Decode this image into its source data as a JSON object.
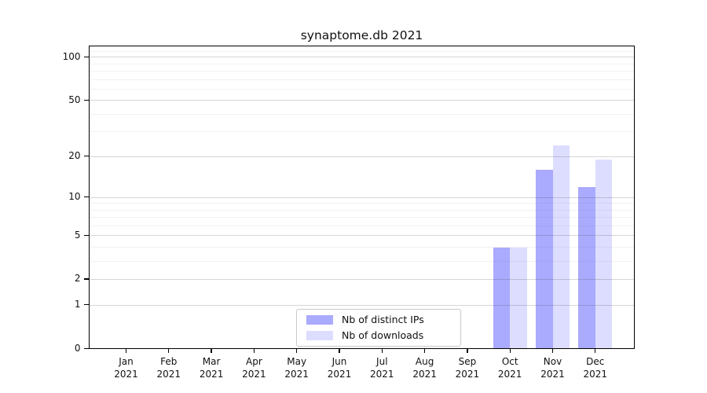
{
  "title": "synaptome.db 2021",
  "colors": {
    "distinct_ips": "#aaaaff",
    "downloads": "#ddddff",
    "axis": "#000000",
    "grid_major": "#d6d6d6",
    "grid_minor": "#ededed",
    "legend_border": "#c9c9c9",
    "background": "#ffffff"
  },
  "y_axis": {
    "tick_values": [
      0,
      1,
      2,
      5,
      10,
      20,
      50,
      100
    ],
    "minor_tick_values": [
      3,
      4,
      6,
      7,
      8,
      9,
      30,
      40,
      60,
      70,
      80,
      90,
      110
    ]
  },
  "x_axis": {
    "months": [
      "Jan",
      "Feb",
      "Mar",
      "Apr",
      "May",
      "Jun",
      "Jul",
      "Aug",
      "Sep",
      "Oct",
      "Nov",
      "Dec"
    ],
    "year": "2021"
  },
  "legend": {
    "items": [
      {
        "label": "Nb of distinct IPs",
        "color_key": "distinct_ips"
      },
      {
        "label": "Nb of downloads",
        "color_key": "downloads"
      }
    ]
  },
  "chart_data": {
    "type": "bar",
    "title": "synaptome.db 2021",
    "categories": [
      "Jan 2021",
      "Feb 2021",
      "Mar 2021",
      "Apr 2021",
      "May 2021",
      "Jun 2021",
      "Jul 2021",
      "Aug 2021",
      "Sep 2021",
      "Oct 2021",
      "Nov 2021",
      "Dec 2021"
    ],
    "series": [
      {
        "name": "Nb of distinct IPs",
        "color": "#aaaaff",
        "values": [
          0,
          0,
          0,
          0,
          0,
          0,
          0,
          0,
          0,
          4,
          16,
          12
        ]
      },
      {
        "name": "Nb of downloads",
        "color": "#ddddff",
        "values": [
          0,
          0,
          0,
          0,
          0,
          0,
          0,
          0,
          0,
          4,
          24,
          19
        ]
      }
    ],
    "xlabel": "",
    "ylabel": "",
    "y_scale": "log10(1+v)",
    "y_ticks": [
      0,
      1,
      2,
      5,
      10,
      20,
      50,
      100
    ],
    "ylim": [
      0,
      120
    ],
    "grid": "horizontal major and minor lines",
    "legend_position": "inside bottom, left of center"
  }
}
